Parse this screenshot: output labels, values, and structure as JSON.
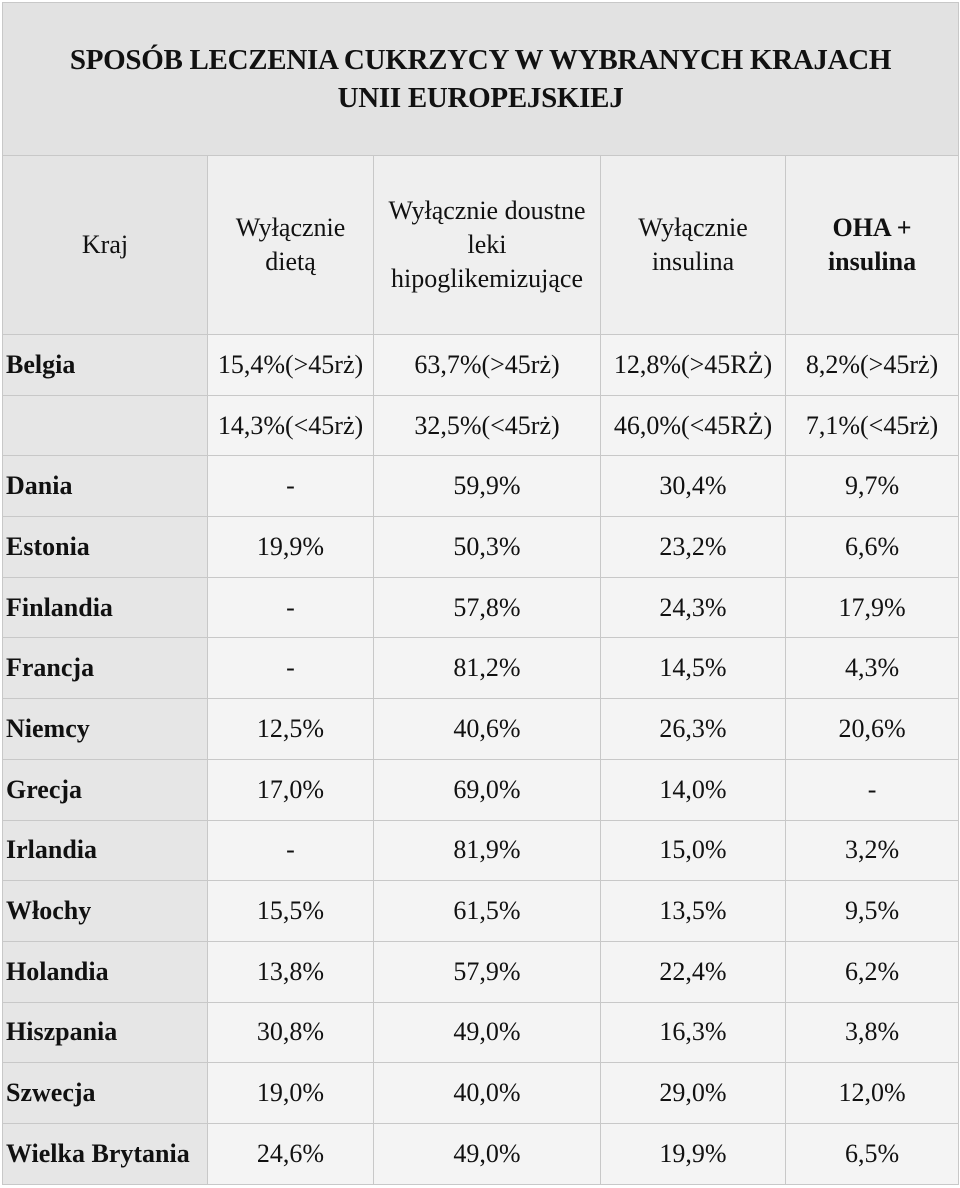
{
  "title": "SPOSÓB LECZENIA CUKRZYCY W WYBRANYCH KRAJACH UNII EUROPEJSKIEJ",
  "headers": [
    "Kraj",
    "Wyłącznie dietą",
    "Wyłącznie doustne leki hipoglikemizujące",
    "Wyłącznie insulina",
    "OHA + insulina"
  ],
  "rows": [
    [
      "Belgia",
      "15,4%(>45rż)",
      "63,7%(>45rż)",
      "12,8%(>45RŻ)",
      "8,2%(>45rż)"
    ],
    [
      "",
      "14,3%(<45rż)",
      "32,5%(<45rż)",
      "46,0%(<45RŻ)",
      "7,1%(<45rż)"
    ],
    [
      "Dania",
      "-",
      "59,9%",
      "30,4%",
      "9,7%"
    ],
    [
      "Estonia",
      "19,9%",
      "50,3%",
      "23,2%",
      "6,6%"
    ],
    [
      "Finlandia",
      "-",
      "57,8%",
      "24,3%",
      "17,9%"
    ],
    [
      "Francja",
      "-",
      "81,2%",
      "14,5%",
      "4,3%"
    ],
    [
      "Niemcy",
      "12,5%",
      "40,6%",
      "26,3%",
      "20,6%"
    ],
    [
      "Grecja",
      "17,0%",
      "69,0%",
      "14,0%",
      "-"
    ],
    [
      "Irlandia",
      "-",
      "81,9%",
      "15,0%",
      "3,2%"
    ],
    [
      "Włochy",
      "15,5%",
      "61,5%",
      "13,5%",
      "9,5%"
    ],
    [
      "Holandia",
      "13,8%",
      "57,9%",
      "22,4%",
      "6,2%"
    ],
    [
      "Hiszpania",
      "30,8%",
      "49,0%",
      "16,3%",
      "3,8%"
    ],
    [
      "Szwecja",
      "19,0%",
      "40,0%",
      "29,0%",
      "12,0%"
    ],
    [
      "Wielka Brytania",
      "24,6%",
      "49,0%",
      "19,9%",
      "6,5%"
    ]
  ]
}
